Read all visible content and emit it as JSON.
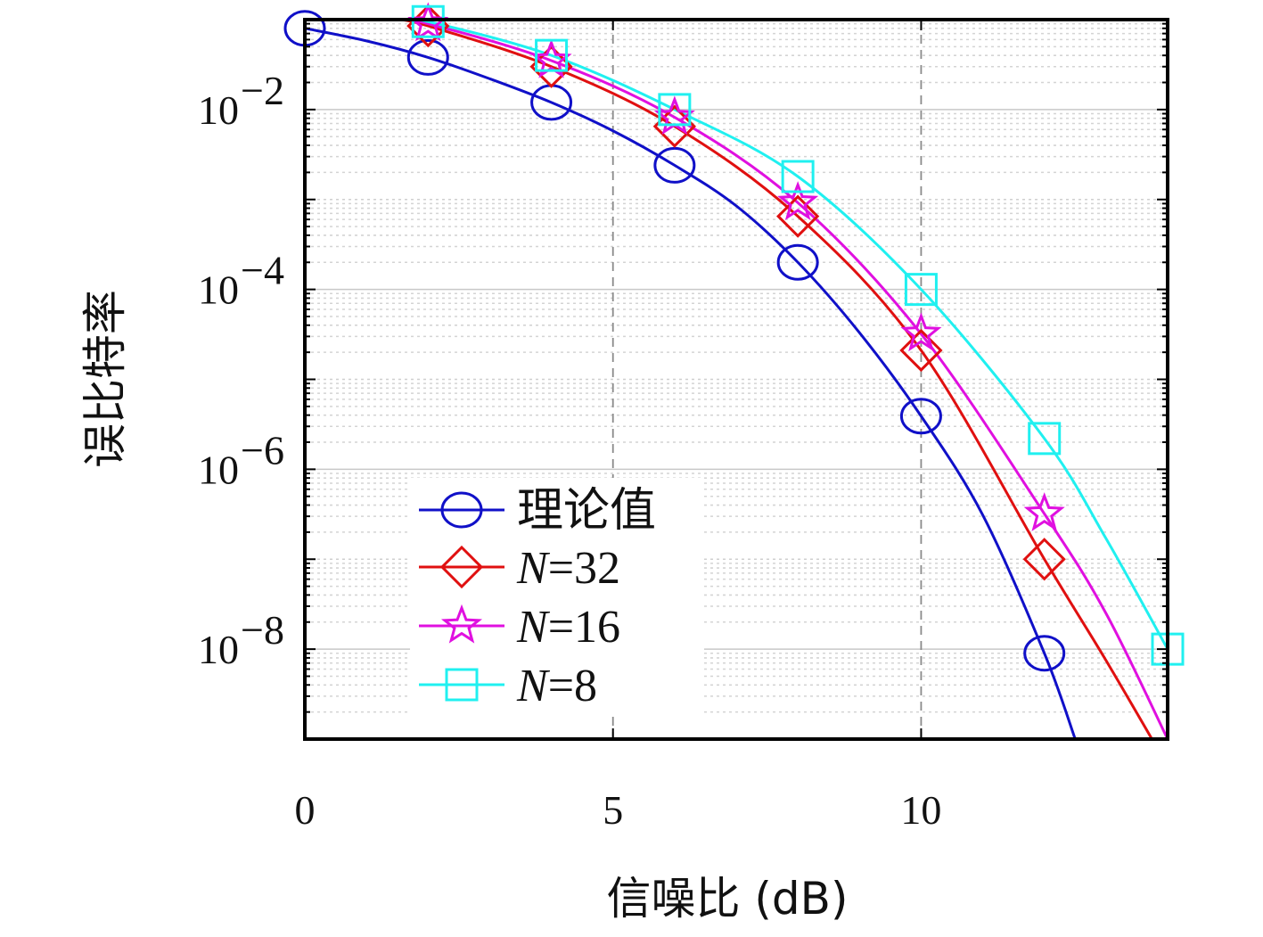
{
  "chart_data": {
    "type": "line",
    "xlabel": "信噪比 (dB)",
    "ylabel": "误比特率",
    "xlim": [
      0,
      14
    ],
    "ylim": [
      1e-09,
      0.1
    ],
    "yscale": "log",
    "xticks": [
      {
        "value": 0,
        "label": "0"
      },
      {
        "value": 5,
        "label": "5"
      },
      {
        "value": 10,
        "label": "10"
      }
    ],
    "yticks": [
      {
        "value": 0.01,
        "base": "10",
        "exp": "−2"
      },
      {
        "value": 0.0001,
        "base": "10",
        "exp": "−4"
      },
      {
        "value": 1e-06,
        "base": "10",
        "exp": "−6"
      },
      {
        "value": 1e-08,
        "base": "10",
        "exp": "−8"
      }
    ],
    "grid": true,
    "legend_position": "bottom-left",
    "series": [
      {
        "name": "理论值",
        "color": "#1010c8",
        "marker": "circle",
        "curve": {
          "x": [
            0,
            1,
            2,
            3,
            4,
            5,
            6,
            7,
            8,
            9,
            10,
            11,
            12,
            12.5
          ],
          "y": [
            0.08,
            0.058,
            0.038,
            0.022,
            0.012,
            0.0058,
            0.0024,
            0.00085,
            0.0002,
            3.3e-05,
            3.9e-06,
            3.1e-07,
            9e-09,
            1e-09
          ]
        },
        "points": {
          "x": [
            0,
            2,
            4,
            6,
            8,
            10,
            12
          ],
          "y": [
            0.08,
            0.038,
            0.012,
            0.0024,
            0.0002,
            3.9e-06,
            9e-09
          ]
        }
      },
      {
        "name": "N=32",
        "name_italic": "N",
        "name_rest": "=32",
        "color": "#e01010",
        "marker": "diamond",
        "curve": {
          "x": [
            1.5,
            2,
            4,
            6,
            8,
            10,
            12,
            13,
            14
          ],
          "y": [
            0.1,
            0.085,
            0.03,
            0.0065,
            0.00065,
            2.1e-05,
            1e-07,
            7.5e-09,
            5e-10
          ]
        },
        "points": {
          "x": [
            2,
            4,
            6,
            8,
            10,
            12
          ],
          "y": [
            0.085,
            0.03,
            0.0065,
            0.00065,
            2.1e-05,
            1e-07
          ]
        }
      },
      {
        "name": "N=16",
        "name_italic": "N",
        "name_rest": "=16",
        "color": "#e010e0",
        "marker": "star",
        "curve": {
          "x": [
            1.5,
            2,
            4,
            6,
            8,
            10,
            12,
            13,
            14
          ],
          "y": [
            0.1,
            0.09,
            0.035,
            0.0082,
            0.00092,
            3.2e-05,
            3.2e-07,
            2.5e-08,
            1e-09
          ]
        },
        "points": {
          "x": [
            2,
            4,
            6,
            8,
            10,
            12
          ],
          "y": [
            0.09,
            0.035,
            0.0082,
            0.00092,
            3.2e-05,
            3.2e-07
          ]
        }
      },
      {
        "name": "N=8",
        "name_italic": "N",
        "name_rest": "=8",
        "color": "#20f0f0",
        "marker": "square",
        "curve": {
          "x": [
            1.5,
            2,
            4,
            6,
            8,
            10,
            12,
            13,
            14
          ],
          "y": [
            0.1,
            0.095,
            0.04,
            0.01,
            0.0018,
            0.0001,
            2.2e-06,
            1.7e-07,
            1e-08
          ]
        },
        "points": {
          "x": [
            2,
            4,
            6,
            8,
            10,
            12,
            14
          ],
          "y": [
            0.095,
            0.04,
            0.01,
            0.0018,
            0.0001,
            2.2e-06,
            1e-08
          ]
        }
      }
    ]
  }
}
